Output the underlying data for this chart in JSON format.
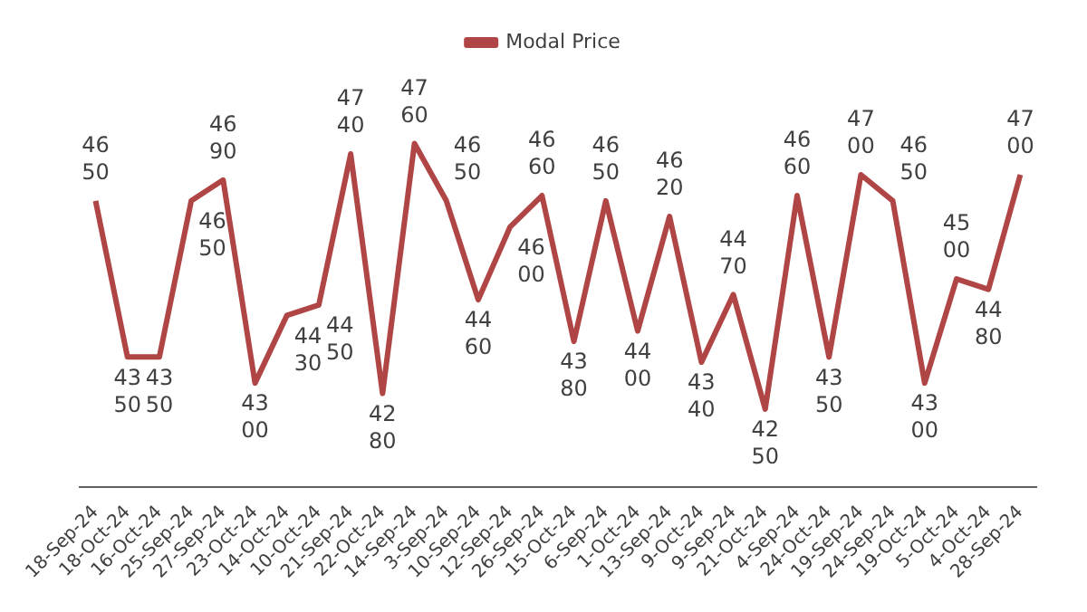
{
  "chart_data": {
    "type": "line",
    "categories": [
      "18-Sep-24",
      "18-Oct-24",
      "16-Oct-24",
      "25-Sep-24",
      "27-Sep-24",
      "23-Oct-24",
      "14-Oct-24",
      "10-Oct-24",
      "21-Sep-24",
      "22-Oct-24",
      "14-Sep-24",
      "3-Sep-24",
      "10-Sep-24",
      "12-Sep-24",
      "26-Sep-24",
      "15-Oct-24",
      "6-Sep-24",
      "1-Oct-24",
      "13-Sep-24",
      "9-Oct-24",
      "9-Sep-24",
      "21-Oct-24",
      "4-Sep-24",
      "24-Oct-24",
      "19-Sep-24",
      "24-Sep-24",
      "19-Oct-24",
      "5-Oct-24",
      "4-Oct-24",
      "28-Sep-24"
    ],
    "series": [
      {
        "name": "Modal Price",
        "color": "#b04545",
        "values": [
          4650,
          4350,
          4350,
          4650,
          4690,
          4300,
          4430,
          4450,
          4740,
          4280,
          4760,
          4650,
          4460,
          4600,
          4660,
          4380,
          4650,
          4400,
          4620,
          4340,
          4470,
          4250,
          4660,
          4350,
          4700,
          4650,
          4300,
          4500,
          4480,
          4700
        ]
      }
    ],
    "data_labels": true,
    "legend": "top",
    "grid": false,
    "marker": "none",
    "line_style": "solid"
  }
}
